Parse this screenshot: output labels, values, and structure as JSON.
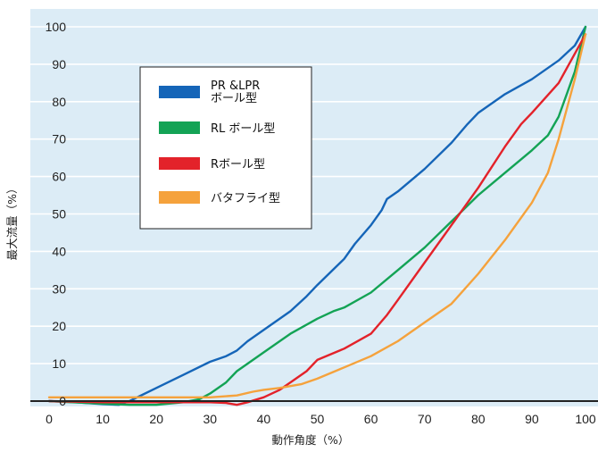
{
  "chart_data": {
    "type": "line",
    "title": "",
    "xlabel": "動作角度（%）",
    "ylabel": "最大流量（%）",
    "xlim": [
      0,
      100
    ],
    "ylim": [
      0,
      100
    ],
    "x_ticks": [
      "0",
      "10",
      "20",
      "30",
      "40",
      "50",
      "60",
      "70",
      "80",
      "90",
      "100"
    ],
    "y_ticks": [
      "0",
      "10",
      "20",
      "30",
      "40",
      "50",
      "60",
      "70",
      "80",
      "90",
      "100"
    ],
    "grid": "horizontal",
    "legend_position": "top-left",
    "colors": {
      "plot_background": "#dcecf6",
      "grid": "#ffffff",
      "zero_line": "#222222"
    },
    "series": [
      {
        "name": "PR &LPR\nボール型",
        "color": "#1565b8",
        "points": [
          [
            0,
            0
          ],
          [
            5,
            -0.3
          ],
          [
            10,
            -0.8
          ],
          [
            13,
            -1
          ],
          [
            15,
            0
          ],
          [
            20,
            3.5
          ],
          [
            25,
            7
          ],
          [
            30,
            10.5
          ],
          [
            33,
            12
          ],
          [
            35,
            13.5
          ],
          [
            37,
            16
          ],
          [
            40,
            19
          ],
          [
            45,
            24
          ],
          [
            48,
            28
          ],
          [
            50,
            31
          ],
          [
            55,
            38
          ],
          [
            57,
            42
          ],
          [
            60,
            47
          ],
          [
            62,
            51
          ],
          [
            63,
            54
          ],
          [
            65,
            56
          ],
          [
            70,
            62
          ],
          [
            75,
            69
          ],
          [
            78,
            74
          ],
          [
            80,
            77
          ],
          [
            85,
            82
          ],
          [
            90,
            86
          ],
          [
            95,
            91
          ],
          [
            98,
            95
          ],
          [
            100,
            100
          ]
        ]
      },
      {
        "name": "RL ボール型",
        "color": "#13a355",
        "points": [
          [
            0,
            0
          ],
          [
            10,
            -0.7
          ],
          [
            15,
            -1
          ],
          [
            20,
            -1
          ],
          [
            25,
            -0.3
          ],
          [
            28,
            0.5
          ],
          [
            30,
            2
          ],
          [
            33,
            5
          ],
          [
            35,
            8
          ],
          [
            40,
            13
          ],
          [
            45,
            18
          ],
          [
            50,
            22
          ],
          [
            53,
            24
          ],
          [
            55,
            25
          ],
          [
            60,
            29
          ],
          [
            65,
            35
          ],
          [
            70,
            41
          ],
          [
            75,
            48
          ],
          [
            80,
            55
          ],
          [
            85,
            61
          ],
          [
            90,
            67
          ],
          [
            93,
            71
          ],
          [
            95,
            76
          ],
          [
            98,
            88
          ],
          [
            100,
            100
          ]
        ]
      },
      {
        "name": "Rボール型",
        "color": "#e3222a",
        "points": [
          [
            0,
            0
          ],
          [
            10,
            -0.3
          ],
          [
            20,
            -0.3
          ],
          [
            30,
            -0.3
          ],
          [
            33,
            -0.5
          ],
          [
            35,
            -1
          ],
          [
            37,
            -0.3
          ],
          [
            40,
            1
          ],
          [
            43,
            3
          ],
          [
            45,
            5
          ],
          [
            48,
            8
          ],
          [
            50,
            11
          ],
          [
            55,
            14
          ],
          [
            60,
            18
          ],
          [
            63,
            23
          ],
          [
            65,
            27
          ],
          [
            70,
            37
          ],
          [
            75,
            47
          ],
          [
            78,
            53
          ],
          [
            80,
            57
          ],
          [
            85,
            68
          ],
          [
            88,
            74
          ],
          [
            90,
            77
          ],
          [
            95,
            85
          ],
          [
            100,
            98
          ]
        ]
      },
      {
        "name": "バタフライ型",
        "color": "#f5a23c",
        "points": [
          [
            0,
            1
          ],
          [
            10,
            1
          ],
          [
            20,
            1
          ],
          [
            30,
            1
          ],
          [
            35,
            1.5
          ],
          [
            38,
            2.5
          ],
          [
            40,
            3
          ],
          [
            43,
            3.5
          ],
          [
            47,
            4.5
          ],
          [
            50,
            6
          ],
          [
            55,
            9
          ],
          [
            60,
            12
          ],
          [
            65,
            16
          ],
          [
            70,
            21
          ],
          [
            75,
            26
          ],
          [
            80,
            34
          ],
          [
            85,
            43
          ],
          [
            90,
            53
          ],
          [
            93,
            61
          ],
          [
            95,
            70
          ],
          [
            98,
            86
          ],
          [
            100,
            98
          ]
        ]
      }
    ]
  }
}
